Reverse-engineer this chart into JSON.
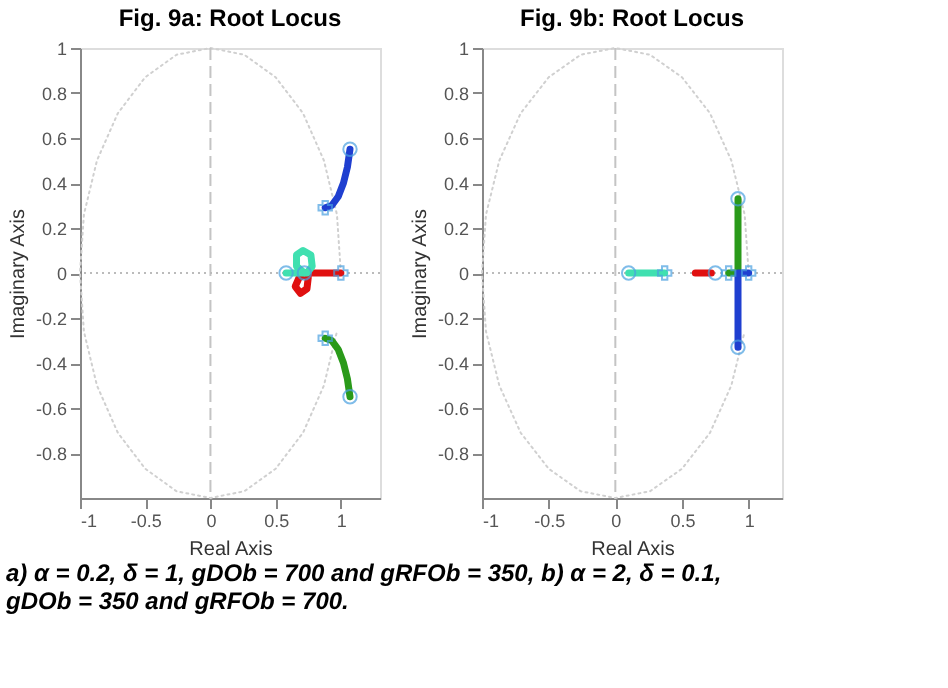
{
  "chart_data": [
    {
      "type": "line",
      "title": "Fig. 9a: Root Locus",
      "xlabel": "Real Axis",
      "ylabel": "Imaginary Axis",
      "xlim": [
        -1,
        1.3
      ],
      "ylim": [
        -1,
        1
      ],
      "xticks": [
        -1,
        -0.5,
        0,
        0.5,
        1
      ],
      "yticks": [
        -0.8,
        -0.6,
        -0.4,
        -0.2,
        0,
        0.2,
        0.4,
        0.6,
        0.8,
        1
      ],
      "grid": false,
      "ref_lines": [
        {
          "axis": "x",
          "value": 0,
          "color": "#c4c4c4",
          "line_style": "dashed"
        },
        {
          "axis": "y",
          "value": 0,
          "color": "#bbbbbb",
          "line_style": "dotted"
        }
      ],
      "annotations": [
        "a) α = 0.2, δ = 1, gDOb = 700 and gRFOb = 350, b) α = 2, δ = 0.1, gDOb = 350 and gRFOb = 700."
      ],
      "series": [
        {
          "color": "#d0d0d0",
          "line_style": "dotted",
          "x": [
            1,
            0.97,
            0.87,
            0.71,
            0.5,
            0.26,
            0,
            -0.26,
            -0.5,
            -0.71,
            -0.87,
            -0.97,
            -1,
            -0.97,
            -0.87,
            -0.71,
            -0.5,
            -0.26,
            0,
            0.26,
            0.5,
            0.71,
            0.87,
            0.97
          ],
          "values": [
            0,
            0.26,
            0.5,
            0.71,
            0.87,
            0.97,
            1,
            0.97,
            0.87,
            0.71,
            0.5,
            0.26,
            0,
            -0.26,
            -0.5,
            -0.71,
            -0.87,
            -0.97,
            -1,
            -0.97,
            -0.87,
            -0.71,
            -0.5,
            -0.26
          ]
        },
        {
          "color": "#1f3fd0",
          "line_style": "solid",
          "x": [
            0.88,
            0.93,
            0.98,
            1.02,
            1.05,
            1.07
          ],
          "values": [
            0.29,
            0.3,
            0.34,
            0.4,
            0.47,
            0.55
          ]
        },
        {
          "color": "#2a9a1a",
          "line_style": "solid",
          "x": [
            0.88,
            0.93,
            0.98,
            1.02,
            1.05,
            1.07
          ],
          "values": [
            -0.29,
            -0.3,
            -0.34,
            -0.4,
            -0.47,
            -0.55
          ]
        },
        {
          "color": "#e01010",
          "line_style": "solid",
          "x": [
            1.0,
            0.85,
            0.75,
            0.68,
            0.65,
            0.69,
            0.74,
            0.75,
            0.72
          ],
          "values": [
            0,
            0,
            0,
            -0.02,
            -0.06,
            -0.09,
            -0.07,
            -0.02,
            0
          ]
        },
        {
          "color": "#40e0b0",
          "line_style": "solid",
          "x": [
            0.72,
            0.66,
            0.66,
            0.71,
            0.77,
            0.78,
            0.74,
            0.58
          ],
          "values": [
            0,
            0.03,
            0.08,
            0.1,
            0.08,
            0.03,
            0,
            0
          ]
        },
        {
          "type": "scatter",
          "marker": "circle",
          "color": "#4aa0e0",
          "x": [
            1.07,
            1.07,
            0.58,
            0.72
          ],
          "values": [
            0.55,
            -0.55,
            0,
            0
          ]
        },
        {
          "type": "scatter",
          "marker": "cross",
          "color": "#4aa0e0",
          "x": [
            0.88,
            0.88,
            1.0
          ],
          "values": [
            0.29,
            -0.29,
            0
          ]
        }
      ]
    },
    {
      "type": "line",
      "title": "Fig. 9b: Root Locus",
      "xlabel": "Real Axis",
      "ylabel": "Imaginary Axis",
      "xlim": [
        -1,
        1.25
      ],
      "ylim": [
        -1,
        1
      ],
      "xticks": [
        -1,
        -0.5,
        0,
        0.5,
        1
      ],
      "yticks": [
        -0.8,
        -0.6,
        -0.4,
        -0.2,
        0,
        0.2,
        0.4,
        0.6,
        0.8,
        1
      ],
      "grid": false,
      "ref_lines": [
        {
          "axis": "x",
          "value": 0,
          "color": "#c4c4c4",
          "line_style": "dashed"
        },
        {
          "axis": "y",
          "value": 0,
          "color": "#bbbbbb",
          "line_style": "dotted"
        }
      ],
      "series": [
        {
          "color": "#d0d0d0",
          "line_style": "dotted",
          "x": [
            1,
            0.97,
            0.87,
            0.71,
            0.5,
            0.26,
            0,
            -0.26,
            -0.5,
            -0.71,
            -0.87,
            -0.97,
            -1,
            -0.97,
            -0.87,
            -0.71,
            -0.5,
            -0.26,
            0,
            0.26,
            0.5,
            0.71,
            0.87,
            0.97
          ],
          "values": [
            0,
            0.26,
            0.5,
            0.71,
            0.87,
            0.97,
            1,
            0.97,
            0.87,
            0.71,
            0.5,
            0.26,
            0,
            -0.26,
            -0.5,
            -0.71,
            -0.87,
            -0.97,
            -1,
            -0.97,
            -0.87,
            -0.71,
            -0.5,
            -0.26
          ]
        },
        {
          "color": "#40e0b0",
          "line_style": "solid",
          "x": [
            0.1,
            0.37
          ],
          "values": [
            0,
            0
          ]
        },
        {
          "color": "#e01010",
          "line_style": "solid",
          "x": [
            0.6,
            0.72
          ],
          "values": [
            0,
            0
          ]
        },
        {
          "color": "#2a9a1a",
          "line_style": "solid",
          "x": [
            0.85,
            0.92,
            0.92,
            0.92
          ],
          "values": [
            0,
            0,
            0.15,
            0.33
          ]
        },
        {
          "color": "#1f3fd0",
          "line_style": "solid",
          "x": [
            1.0,
            0.92,
            0.92,
            0.92
          ],
          "values": [
            0,
            0,
            -0.15,
            -0.33
          ]
        },
        {
          "type": "scatter",
          "marker": "circle",
          "color": "#4aa0e0",
          "x": [
            0.1,
            0.75,
            0.92,
            0.92
          ],
          "values": [
            0,
            0,
            0.33,
            -0.33
          ]
        },
        {
          "type": "scatter",
          "marker": "cross",
          "color": "#4aa0e0",
          "x": [
            0.37,
            1.0,
            0.85
          ],
          "values": [
            0,
            0,
            0
          ]
        }
      ]
    }
  ]
}
